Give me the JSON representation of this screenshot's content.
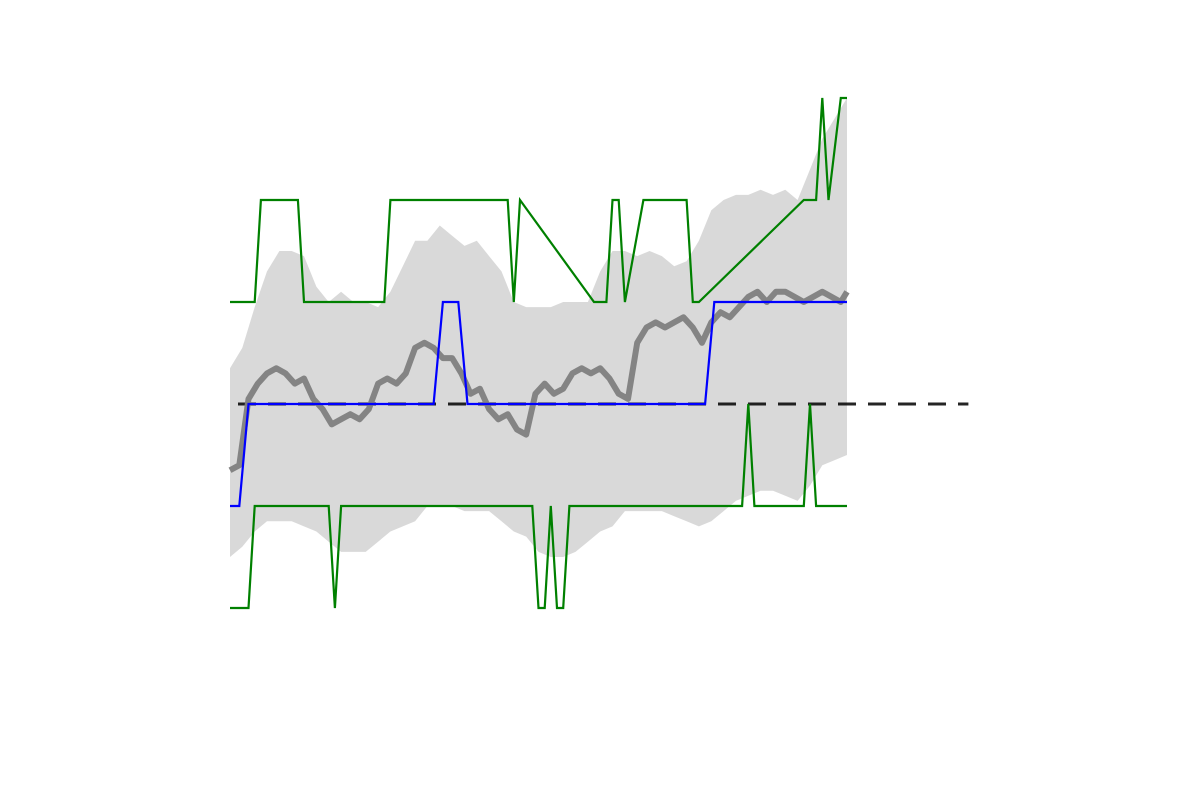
{
  "chart_data": {
    "type": "line",
    "title": "",
    "xlabel": "",
    "ylabel": "",
    "xlim": [
      0,
      100
    ],
    "ylim": [
      -2.0,
      3.0
    ],
    "grid": false,
    "legend": "none",
    "colors": {
      "band": "#d9d9d9",
      "mean": "#808080",
      "blue": "#0000ff",
      "green": "#008000",
      "reference": "#000000"
    },
    "reference_line": {
      "y": 0,
      "x_start": 0,
      "x_end": 120,
      "style": "dashed"
    },
    "series": [
      {
        "kind": "band",
        "x": [
          0,
          2,
          4,
          6,
          8,
          10,
          12,
          14,
          16,
          18,
          20,
          22,
          24,
          26,
          28,
          30,
          32,
          34,
          36,
          38,
          40,
          42,
          44,
          46,
          48,
          50,
          52,
          54,
          56,
          58,
          60,
          62,
          64,
          66,
          68,
          70,
          72,
          74,
          76,
          78,
          80,
          82,
          84,
          86,
          88,
          90,
          92,
          94,
          96,
          98,
          100
        ],
        "upper": [
          0.35,
          0.55,
          0.95,
          1.3,
          1.5,
          1.5,
          1.45,
          1.15,
          1.0,
          1.1,
          1.0,
          1.0,
          0.95,
          1.1,
          1.35,
          1.6,
          1.6,
          1.75,
          1.65,
          1.55,
          1.6,
          1.45,
          1.3,
          1.0,
          0.95,
          0.95,
          0.95,
          1.0,
          1.0,
          1.0,
          1.3,
          1.5,
          1.5,
          1.45,
          1.5,
          1.45,
          1.35,
          1.4,
          1.6,
          1.9,
          2.0,
          2.05,
          2.05,
          2.1,
          2.05,
          2.1,
          2.0,
          2.3,
          2.6,
          2.8,
          3.0
        ],
        "lower": [
          -1.5,
          -1.4,
          -1.25,
          -1.15,
          -1.15,
          -1.15,
          -1.2,
          -1.25,
          -1.35,
          -1.45,
          -1.45,
          -1.45,
          -1.35,
          -1.25,
          -1.2,
          -1.15,
          -1.0,
          -1.0,
          -1.0,
          -1.05,
          -1.05,
          -1.05,
          -1.15,
          -1.25,
          -1.3,
          -1.45,
          -1.5,
          -1.5,
          -1.45,
          -1.35,
          -1.25,
          -1.2,
          -1.05,
          -1.05,
          -1.05,
          -1.05,
          -1.1,
          -1.15,
          -1.2,
          -1.15,
          -1.05,
          -0.95,
          -0.9,
          -0.85,
          -0.85,
          -0.9,
          -0.95,
          -0.8,
          -0.6,
          -0.55,
          -0.5
        ]
      },
      {
        "kind": "mean",
        "x": [
          0,
          1.5,
          3,
          4.5,
          6,
          7.5,
          9,
          10.5,
          12,
          13.5,
          15,
          16.5,
          18,
          19.5,
          21,
          22.5,
          24,
          25.5,
          27,
          28.5,
          30,
          31.5,
          33,
          34.5,
          36,
          37.5,
          39,
          40.5,
          42,
          43.5,
          45,
          46.5,
          48,
          49.5,
          51,
          52.5,
          54,
          55.5,
          57,
          58.5,
          60,
          61.5,
          63,
          64.5,
          66,
          67.5,
          69,
          70.5,
          72,
          73.5,
          75,
          76.5,
          78,
          79.5,
          81,
          82.5,
          84,
          85.5,
          87,
          88.5,
          90,
          91.5,
          93,
          94.5,
          96,
          97.5,
          99,
          100
        ],
        "y": [
          -0.65,
          -0.6,
          0.05,
          0.2,
          0.3,
          0.35,
          0.3,
          0.2,
          0.25,
          0.05,
          -0.05,
          -0.2,
          -0.15,
          -0.1,
          -0.15,
          -0.05,
          0.2,
          0.25,
          0.2,
          0.3,
          0.55,
          0.6,
          0.55,
          0.45,
          0.45,
          0.3,
          0.1,
          0.15,
          -0.05,
          -0.15,
          -0.1,
          -0.25,
          -0.3,
          0.1,
          0.2,
          0.1,
          0.15,
          0.3,
          0.35,
          0.3,
          0.35,
          0.25,
          0.1,
          0.05,
          0.6,
          0.75,
          0.8,
          0.75,
          0.8,
          0.85,
          0.75,
          0.6,
          0.8,
          0.9,
          0.85,
          0.95,
          1.05,
          1.1,
          1.0,
          1.1,
          1.1,
          1.05,
          1.0,
          1.05,
          1.1,
          1.05,
          1.0,
          1.1
        ]
      },
      {
        "kind": "step",
        "x": [
          0,
          1.5,
          3,
          4.5,
          6,
          33,
          34.5,
          36,
          37,
          38.5,
          40,
          77,
          78.5,
          80,
          100
        ],
        "y": [
          -1,
          -1,
          0,
          0,
          0,
          0,
          1,
          1,
          1,
          0,
          0,
          0,
          1,
          1,
          1
        ]
      },
      {
        "kind": "step",
        "x": [
          0,
          4,
          5,
          7,
          11,
          12,
          13,
          25,
          26,
          41,
          45,
          46,
          47,
          59,
          60,
          61,
          62,
          63,
          64,
          67,
          68,
          69,
          74,
          75,
          76,
          93,
          95,
          96,
          97,
          99,
          100
        ],
        "y": [
          1,
          1,
          2,
          2,
          2,
          1,
          1,
          1,
          2,
          2,
          2,
          1,
          2,
          1,
          1,
          1,
          2,
          2,
          1,
          2,
          2,
          2,
          2,
          1,
          1,
          2,
          2,
          3,
          2,
          3,
          3
        ]
      },
      {
        "kind": "step",
        "x": [
          0,
          3,
          4,
          16,
          17,
          18,
          49,
          50,
          51,
          52,
          53,
          54,
          55,
          83,
          84,
          85,
          93,
          94,
          95,
          100
        ],
        "y": [
          -2,
          -2,
          -1,
          -1,
          -2,
          -1,
          -1,
          -2,
          -2,
          -1,
          -2,
          -2,
          -1,
          -1,
          0,
          -1,
          -1,
          0,
          -1,
          -1
        ]
      }
    ]
  }
}
